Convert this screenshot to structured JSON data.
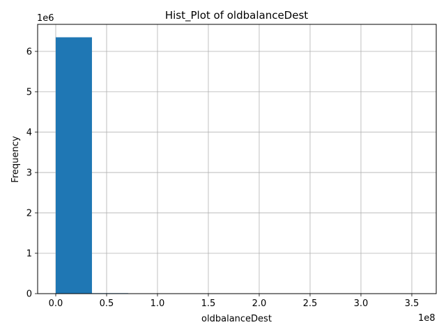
{
  "chart_data": {
    "type": "bar",
    "title": "Hist_Plot of oldbalanceDest",
    "xlabel": "oldbalanceDest",
    "ylabel": "Frequency",
    "x_offset_text": "1e8",
    "y_offset_text": "1e6",
    "x_scale": 100000000,
    "y_scale": 1000000,
    "xlim": [
      -0.178,
      3.74
    ],
    "ylim": [
      0,
      6.67
    ],
    "x_ticks": [
      0.0,
      0.5,
      1.0,
      1.5,
      2.0,
      2.5,
      3.0,
      3.5
    ],
    "x_tick_labels": [
      "0.0",
      "0.5",
      "1.0",
      "1.5",
      "2.0",
      "2.5",
      "3.0",
      "3.5"
    ],
    "y_ticks": [
      0,
      1,
      2,
      3,
      4,
      5,
      6
    ],
    "y_tick_labels": [
      "0",
      "1",
      "2",
      "3",
      "4",
      "5",
      "6"
    ],
    "grid": true,
    "bar_color": "#1f77b4",
    "bins": [
      {
        "start": 0.0,
        "end": 0.356,
        "value": 6.35
      },
      {
        "start": 0.356,
        "end": 0.712,
        "value": 0.012
      },
      {
        "start": 0.712,
        "end": 1.068,
        "value": 0.001
      },
      {
        "start": 1.068,
        "end": 1.424,
        "value": 0.0004
      },
      {
        "start": 1.424,
        "end": 1.78,
        "value": 0.0002
      },
      {
        "start": 1.78,
        "end": 2.136,
        "value": 0.0001
      },
      {
        "start": 2.136,
        "end": 2.492,
        "value": 0.0001
      },
      {
        "start": 2.492,
        "end": 2.848,
        "value": 5e-05
      },
      {
        "start": 2.848,
        "end": 3.204,
        "value": 2e-05
      },
      {
        "start": 3.204,
        "end": 3.56,
        "value": 1e-05
      }
    ]
  }
}
